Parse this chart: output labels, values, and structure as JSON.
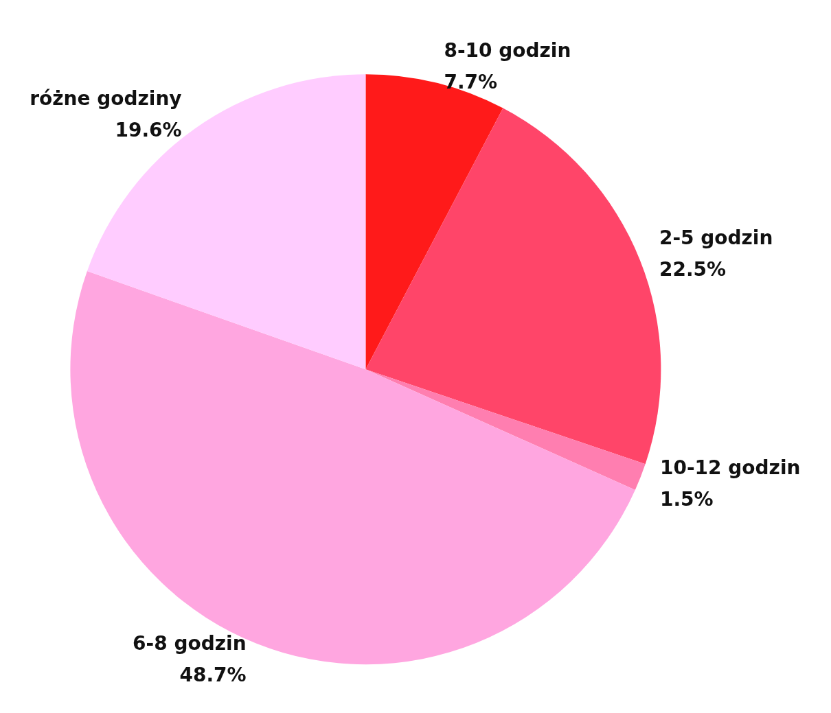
{
  "chart_data": {
    "type": "pie",
    "categories": [
      "8-10 godzin",
      "2-5 godzin",
      "10-12 godzin",
      "6-8 godzin",
      "różne godziny"
    ],
    "values": [
      7.7,
      22.5,
      1.5,
      48.7,
      19.6
    ],
    "colors": [
      "#ff1a1a",
      "#ff4569",
      "#ff7eb0",
      "#ffa6e0",
      "#ffccff"
    ],
    "value_labels": [
      "7.7%",
      "22.5%",
      "1.5%",
      "48.7%",
      "19.6%"
    ]
  }
}
